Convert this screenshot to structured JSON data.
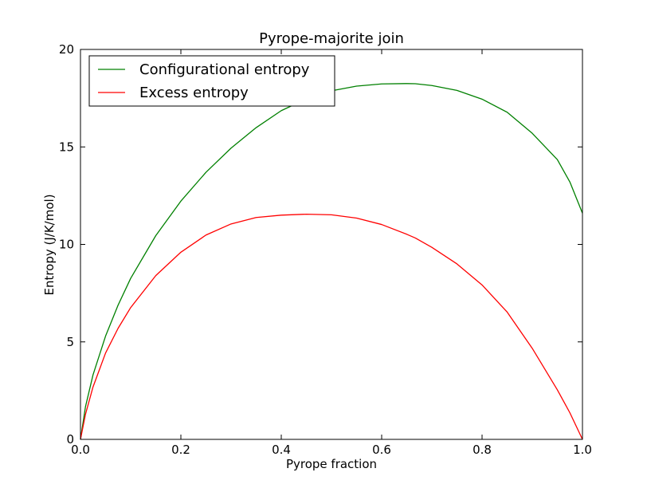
{
  "chart_data": {
    "type": "line",
    "title": "Pyrope-majorite join",
    "xlabel": "Pyrope fraction",
    "ylabel": "Entropy (J/K/mol)",
    "xlim": [
      0.0,
      1.0
    ],
    "ylim": [
      0,
      20
    ],
    "xticks": [
      0.0,
      0.2,
      0.4,
      0.6,
      0.8,
      1.0
    ],
    "xtick_labels": [
      "0.0",
      "0.2",
      "0.4",
      "0.6",
      "0.8",
      "1.0"
    ],
    "yticks": [
      0,
      5,
      10,
      15,
      20
    ],
    "ytick_labels": [
      "0",
      "5",
      "10",
      "15",
      "20"
    ],
    "grid": false,
    "legend_position": "top-left",
    "x": [
      0.0,
      0.01,
      0.025,
      0.05,
      0.075,
      0.1,
      0.15,
      0.2,
      0.25,
      0.3,
      0.35,
      0.4,
      0.45,
      0.5,
      0.55,
      0.6,
      0.65,
      0.667,
      0.7,
      0.75,
      0.8,
      0.85,
      0.9,
      0.95,
      0.975,
      1.0
    ],
    "series": [
      {
        "name": "Configurational entropy",
        "color": "#008000",
        "values": [
          0.0,
          1.68,
          3.31,
          5.3,
          6.89,
          8.26,
          10.45,
          12.22,
          13.7,
          14.94,
          15.99,
          16.86,
          17.46,
          17.88,
          18.12,
          18.23,
          18.25,
          18.24,
          18.15,
          17.9,
          17.45,
          16.78,
          15.7,
          14.35,
          13.2,
          11.6
        ]
      },
      {
        "name": "Excess entropy",
        "color": "#ff0000",
        "values": [
          0.0,
          1.29,
          2.69,
          4.43,
          5.7,
          6.76,
          8.4,
          9.6,
          10.48,
          11.05,
          11.38,
          11.5,
          11.55,
          11.52,
          11.35,
          11.02,
          10.52,
          10.33,
          9.85,
          9.0,
          7.92,
          6.53,
          4.67,
          2.54,
          1.36,
          0.0
        ]
      }
    ]
  }
}
